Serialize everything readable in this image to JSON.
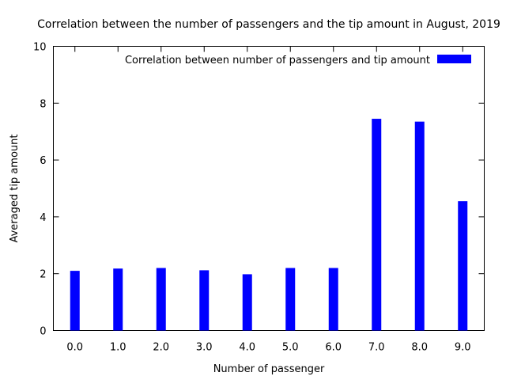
{
  "chart_data": {
    "type": "bar",
    "title": "Correlation between the number of passengers and the tip amount in August, 2019",
    "xlabel": "Number of passenger",
    "ylabel": "Averaged tip amount",
    "categories": [
      "0.0",
      "1.0",
      "2.0",
      "3.0",
      "4.0",
      "5.0",
      "6.0",
      "7.0",
      "8.0",
      "9.0"
    ],
    "series": [
      {
        "name": "Correlation between number of passengers and tip amount",
        "color": "#0000ff",
        "values": [
          2.1,
          2.18,
          2.2,
          2.12,
          1.98,
          2.2,
          2.2,
          7.45,
          7.35,
          4.55
        ]
      }
    ],
    "ylim": [
      0,
      10
    ],
    "yticks": [
      "0",
      "2",
      "4",
      "6",
      "8",
      "10"
    ],
    "grid": false,
    "legend_position": "top-right"
  }
}
